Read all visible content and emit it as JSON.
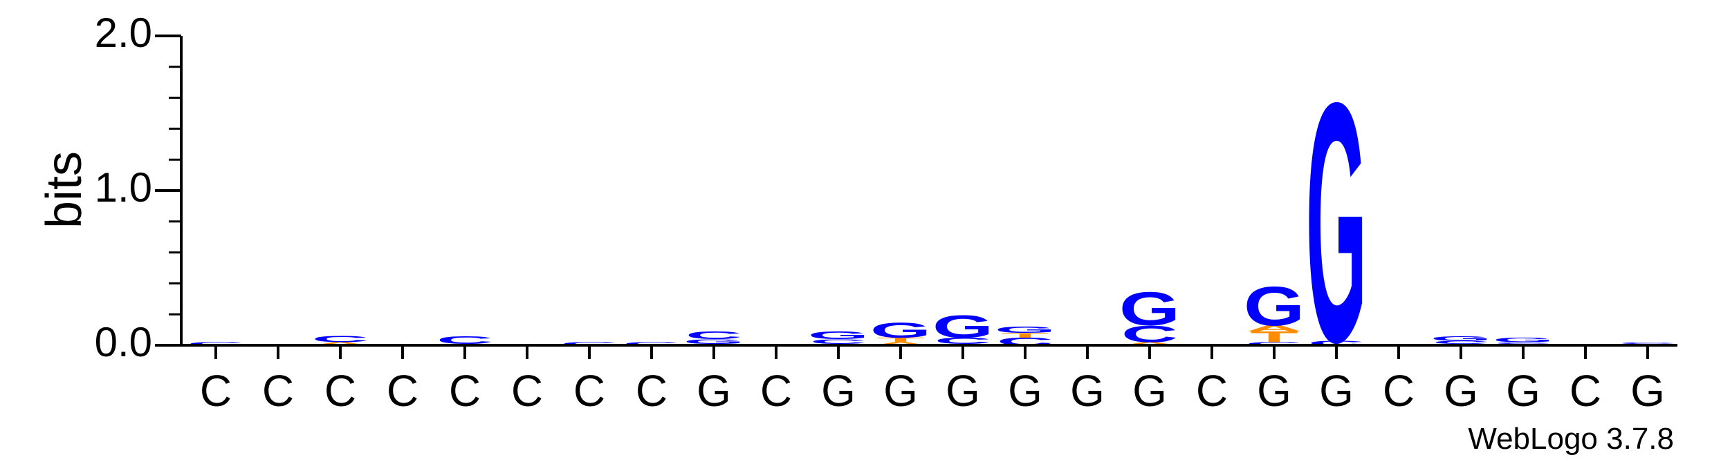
{
  "chart_data": {
    "type": "sequence-logo",
    "ylabel": "bits",
    "ylim": [
      0,
      2.0
    ],
    "y_ticks": [
      "0.0",
      "1.0",
      "2.0"
    ],
    "x_labels": [
      "C",
      "C",
      "C",
      "C",
      "C",
      "C",
      "C",
      "C",
      "G",
      "C",
      "G",
      "G",
      "G",
      "G",
      "G",
      "G",
      "C",
      "G",
      "G",
      "C",
      "G",
      "G",
      "C",
      "G"
    ],
    "footer": "WebLogo 3.7.8",
    "colors": {
      "G": "#0000ff",
      "C": "#0000ff",
      "A": "#ff8c00",
      "T": "#ff8c00",
      "axis": "#000000"
    },
    "positions": [
      {
        "index": 1,
        "stack": [
          {
            "letter": "C",
            "bits": 0.02
          }
        ]
      },
      {
        "index": 2,
        "stack": [
          {
            "letter": "C",
            "bits": 0.01
          }
        ]
      },
      {
        "index": 3,
        "stack": [
          {
            "letter": "A",
            "bits": 0.02
          },
          {
            "letter": "C",
            "bits": 0.04
          }
        ]
      },
      {
        "index": 4,
        "stack": []
      },
      {
        "index": 5,
        "stack": [
          {
            "letter": "A",
            "bits": 0.01
          },
          {
            "letter": "C",
            "bits": 0.05
          }
        ]
      },
      {
        "index": 6,
        "stack": []
      },
      {
        "index": 7,
        "stack": [
          {
            "letter": "C",
            "bits": 0.02
          }
        ]
      },
      {
        "index": 8,
        "stack": [
          {
            "letter": "C",
            "bits": 0.02
          }
        ]
      },
      {
        "index": 9,
        "stack": [
          {
            "letter": "A",
            "bits": 0.01
          },
          {
            "letter": "G",
            "bits": 0.03
          },
          {
            "letter": "C",
            "bits": 0.05
          }
        ]
      },
      {
        "index": 10,
        "stack": []
      },
      {
        "index": 11,
        "stack": [
          {
            "letter": "A",
            "bits": 0.01
          },
          {
            "letter": "C",
            "bits": 0.03
          },
          {
            "letter": "G",
            "bits": 0.05
          }
        ]
      },
      {
        "index": 12,
        "stack": [
          {
            "letter": "A",
            "bits": 0.02
          },
          {
            "letter": "T",
            "bits": 0.03
          },
          {
            "letter": "G",
            "bits": 0.1
          }
        ]
      },
      {
        "index": 13,
        "stack": [
          {
            "letter": "A",
            "bits": 0.01
          },
          {
            "letter": "C",
            "bits": 0.04
          },
          {
            "letter": "G",
            "bits": 0.15
          }
        ]
      },
      {
        "index": 14,
        "stack": [
          {
            "letter": "C",
            "bits": 0.05
          },
          {
            "letter": "T",
            "bits": 0.03
          },
          {
            "letter": "G",
            "bits": 0.04
          }
        ]
      },
      {
        "index": 15,
        "stack": []
      },
      {
        "index": 16,
        "stack": [
          {
            "letter": "A",
            "bits": 0.02
          },
          {
            "letter": "C",
            "bits": 0.11
          },
          {
            "letter": "G",
            "bits": 0.22
          }
        ]
      },
      {
        "index": 17,
        "stack": []
      },
      {
        "index": 18,
        "stack": [
          {
            "letter": "C",
            "bits": 0.02
          },
          {
            "letter": "T",
            "bits": 0.07
          },
          {
            "letter": "A",
            "bits": 0.04
          },
          {
            "letter": "G",
            "bits": 0.26
          }
        ]
      },
      {
        "index": 19,
        "stack": [
          {
            "letter": "C",
            "bits": 0.03
          },
          {
            "letter": "G",
            "bits": 1.59
          }
        ]
      },
      {
        "index": 20,
        "stack": []
      },
      {
        "index": 21,
        "stack": [
          {
            "letter": "A",
            "bits": 0.01
          },
          {
            "letter": "C",
            "bits": 0.02
          },
          {
            "letter": "G",
            "bits": 0.03
          }
        ]
      },
      {
        "index": 22,
        "stack": [
          {
            "letter": "A",
            "bits": 0.01
          },
          {
            "letter": "C",
            "bits": 0.01
          },
          {
            "letter": "G",
            "bits": 0.03
          }
        ]
      },
      {
        "index": 23,
        "stack": []
      },
      {
        "index": 24,
        "stack": [
          {
            "letter": "A",
            "bits": 0.01
          },
          {
            "letter": "C",
            "bits": 0.01
          }
        ]
      }
    ]
  }
}
